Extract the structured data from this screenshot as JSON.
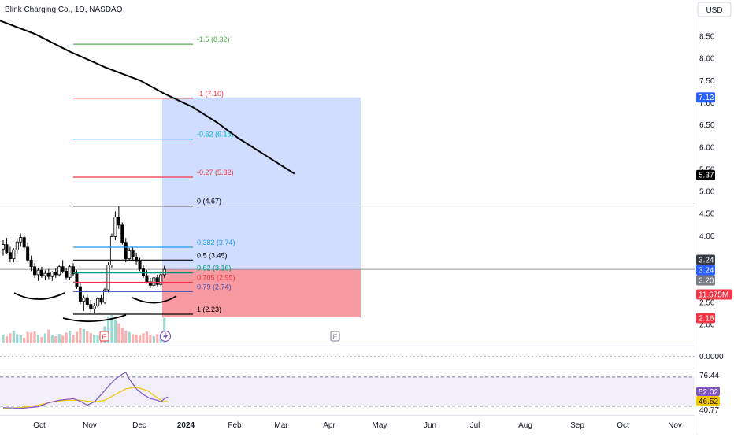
{
  "header": {
    "symbol_title": "Blink Charging Co., 1D, NASDAQ",
    "currency_button": "USD"
  },
  "chart_data": {
    "type": "candlestick",
    "title": "Blink Charging Co., 1D, NASDAQ",
    "price_axis": {
      "ticks": [
        "8.50",
        "8.00",
        "7.50",
        "7.00",
        "6.50",
        "6.00",
        "5.50",
        "5.00",
        "4.50",
        "4.00",
        "3.50",
        "3.00",
        "2.50",
        "2.00"
      ],
      "tick_values": [
        8.5,
        8.0,
        7.5,
        7.0,
        6.5,
        6.0,
        5.5,
        5.0,
        4.5,
        4.0,
        3.5,
        3.0,
        2.5,
        2.0
      ],
      "range": [
        1.6,
        9.1
      ]
    },
    "price_badges": [
      {
        "label": "7.12",
        "value": 7.12,
        "color": "#2962ff"
      },
      {
        "label": "5.37",
        "value": 5.37,
        "color": "#000000"
      },
      {
        "label": "3.24",
        "value": 3.24,
        "color": "#363a45"
      },
      {
        "label": "3.24",
        "value": 3.24,
        "color": "#2962ff"
      },
      {
        "label": "3.20",
        "value": 3.2,
        "color": "#787b86"
      },
      {
        "label": "11.675M",
        "value": 2.64,
        "color": "#f23645"
      },
      {
        "label": "2.16",
        "value": 2.16,
        "color": "#f23645"
      }
    ],
    "time_axis": {
      "labels": [
        "Oct",
        "Nov",
        "Dec",
        "2024",
        "Feb",
        "Mar",
        "Apr",
        "May",
        "Jun",
        "Jul",
        "Aug",
        "Sep",
        "Oct",
        "Nov"
      ],
      "bold": [
        "2024"
      ]
    },
    "fibonacci": [
      {
        "label": "-1.5 (8.32)",
        "value": 8.32,
        "color": "#4caf50"
      },
      {
        "label": "-1 (7.10)",
        "value": 7.1,
        "color": "#f23645"
      },
      {
        "label": "-0.62 (6.18)",
        "value": 6.18,
        "color": "#00bcd4"
      },
      {
        "label": "-0.27 (5.32)",
        "value": 5.32,
        "color": "#f23645"
      },
      {
        "label": "0 (4.67)",
        "value": 4.67,
        "color": "#000000"
      },
      {
        "label": "0.382 (3.74)",
        "value": 3.74,
        "color": "#2196f3"
      },
      {
        "label": "0.5 (3.45)",
        "value": 3.45,
        "color": "#000000"
      },
      {
        "label": "0.62 (3.16)",
        "value": 3.16,
        "color": "#009688"
      },
      {
        "label": "0.705 (2.95)",
        "value": 2.95,
        "color": "#f23645"
      },
      {
        "label": "0.79 (2.74)",
        "value": 2.74,
        "color": "#3f51b5"
      },
      {
        "label": "1 (2.23)",
        "value": 2.23,
        "color": "#000000"
      }
    ],
    "position": {
      "entry": 3.24,
      "target": 7.12,
      "stop": 2.16
    },
    "moving_average": [
      [
        0,
        8.85
      ],
      [
        10,
        8.55
      ],
      [
        20,
        8.15
      ],
      [
        30,
        7.8
      ],
      [
        40,
        7.5
      ],
      [
        47,
        7.2
      ],
      [
        55,
        6.9
      ],
      [
        62,
        6.55
      ],
      [
        68,
        6.2
      ],
      [
        75,
        5.85
      ],
      [
        80,
        5.6
      ],
      [
        84,
        5.4
      ]
    ],
    "candles": [
      {
        "o": 3.7,
        "h": 3.9,
        "l": 3.55,
        "c": 3.8
      },
      {
        "o": 3.8,
        "h": 3.95,
        "l": 3.6,
        "c": 3.62
      },
      {
        "o": 3.62,
        "h": 3.75,
        "l": 3.4,
        "c": 3.48
      },
      {
        "o": 3.48,
        "h": 3.72,
        "l": 3.4,
        "c": 3.68
      },
      {
        "o": 3.68,
        "h": 3.95,
        "l": 3.6,
        "c": 3.86
      },
      {
        "o": 3.86,
        "h": 4.05,
        "l": 3.75,
        "c": 3.96
      },
      {
        "o": 3.96,
        "h": 4.02,
        "l": 3.7,
        "c": 3.74
      },
      {
        "o": 3.74,
        "h": 3.85,
        "l": 3.4,
        "c": 3.45
      },
      {
        "o": 3.45,
        "h": 3.55,
        "l": 3.2,
        "c": 3.3
      },
      {
        "o": 3.3,
        "h": 3.38,
        "l": 3.05,
        "c": 3.12
      },
      {
        "o": 3.12,
        "h": 3.28,
        "l": 2.98,
        "c": 3.22
      },
      {
        "o": 3.22,
        "h": 3.3,
        "l": 3.05,
        "c": 3.1
      },
      {
        "o": 3.1,
        "h": 3.22,
        "l": 3.0,
        "c": 3.15
      },
      {
        "o": 3.15,
        "h": 3.25,
        "l": 3.02,
        "c": 3.08
      },
      {
        "o": 3.08,
        "h": 3.2,
        "l": 2.98,
        "c": 3.18
      },
      {
        "o": 3.18,
        "h": 3.26,
        "l": 3.05,
        "c": 3.12
      },
      {
        "o": 3.12,
        "h": 3.35,
        "l": 3.08,
        "c": 3.3
      },
      {
        "o": 3.3,
        "h": 3.45,
        "l": 3.15,
        "c": 3.2
      },
      {
        "o": 3.2,
        "h": 3.28,
        "l": 3.02,
        "c": 3.06
      },
      {
        "o": 3.06,
        "h": 3.35,
        "l": 3.0,
        "c": 3.3
      },
      {
        "o": 3.3,
        "h": 3.38,
        "l": 3.1,
        "c": 3.14
      },
      {
        "o": 3.14,
        "h": 3.22,
        "l": 2.8,
        "c": 2.85
      },
      {
        "o": 2.85,
        "h": 2.92,
        "l": 2.45,
        "c": 2.52
      },
      {
        "o": 2.52,
        "h": 2.65,
        "l": 2.3,
        "c": 2.6
      },
      {
        "o": 2.6,
        "h": 2.68,
        "l": 2.4,
        "c": 2.45
      },
      {
        "o": 2.45,
        "h": 2.55,
        "l": 2.28,
        "c": 2.35
      },
      {
        "o": 2.35,
        "h": 2.48,
        "l": 2.25,
        "c": 2.42
      },
      {
        "o": 2.42,
        "h": 2.62,
        "l": 2.38,
        "c": 2.58
      },
      {
        "o": 2.58,
        "h": 2.66,
        "l": 2.45,
        "c": 2.5
      },
      {
        "o": 2.5,
        "h": 2.82,
        "l": 2.46,
        "c": 2.78
      },
      {
        "o": 2.78,
        "h": 3.4,
        "l": 2.72,
        "c": 3.34
      },
      {
        "o": 3.34,
        "h": 4.05,
        "l": 3.28,
        "c": 3.98
      },
      {
        "o": 3.98,
        "h": 4.55,
        "l": 3.9,
        "c": 4.42
      },
      {
        "o": 4.42,
        "h": 4.67,
        "l": 4.15,
        "c": 4.24
      },
      {
        "o": 4.24,
        "h": 4.3,
        "l": 3.8,
        "c": 3.85
      },
      {
        "o": 3.85,
        "h": 3.95,
        "l": 3.4,
        "c": 3.48
      },
      {
        "o": 3.48,
        "h": 3.72,
        "l": 3.42,
        "c": 3.66
      },
      {
        "o": 3.66,
        "h": 3.74,
        "l": 3.45,
        "c": 3.52
      },
      {
        "o": 3.52,
        "h": 3.62,
        "l": 3.35,
        "c": 3.42
      },
      {
        "o": 3.42,
        "h": 3.5,
        "l": 3.2,
        "c": 3.25
      },
      {
        "o": 3.25,
        "h": 3.34,
        "l": 3.05,
        "c": 3.1
      },
      {
        "o": 3.1,
        "h": 3.22,
        "l": 2.92,
        "c": 2.96
      },
      {
        "o": 2.96,
        "h": 3.05,
        "l": 2.82,
        "c": 2.88
      },
      {
        "o": 2.88,
        "h": 3.1,
        "l": 2.84,
        "c": 3.05
      },
      {
        "o": 3.05,
        "h": 3.12,
        "l": 2.86,
        "c": 2.9
      },
      {
        "o": 2.9,
        "h": 3.2,
        "l": 2.86,
        "c": 3.12
      },
      {
        "o": 3.12,
        "h": 3.32,
        "l": 3.05,
        "c": 3.24
      }
    ],
    "volume_bars": [
      0.3,
      0.25,
      0.35,
      0.45,
      0.32,
      0.28,
      0.2,
      0.4,
      0.38,
      0.42,
      0.3,
      0.22,
      0.35,
      0.48,
      0.3,
      0.25,
      0.33,
      0.27,
      0.38,
      0.45,
      0.3,
      0.4,
      0.55,
      0.5,
      0.42,
      0.36,
      0.3,
      0.28,
      0.35,
      0.6,
      0.95,
      1.0,
      0.85,
      0.7,
      0.55,
      0.45,
      0.4,
      0.32,
      0.3,
      0.28,
      0.35,
      0.42,
      0.3,
      0.25,
      0.32,
      0.3,
      0.9
    ],
    "earnings_markers": [
      {
        "label": "E",
        "index": 30,
        "style": "past"
      },
      {
        "label": "E",
        "index": 104,
        "style": "future"
      }
    ],
    "indicator_1": {
      "label": "0.0000",
      "value": 0.0
    },
    "rsi": {
      "range": [
        30,
        85
      ],
      "upper_label": "76.44",
      "upper": 76.44,
      "lower_label": "40.77",
      "lower": 40.77,
      "rsi_label": "52.02",
      "rsi_value": 52.02,
      "rsi_color": "#7e57c2",
      "ma_label": "46.52",
      "ma_value": 46.52,
      "ma_color": "#f7c600",
      "rsi_line": [
        [
          0,
          39
        ],
        [
          5,
          38
        ],
        [
          10,
          40
        ],
        [
          13,
          45
        ],
        [
          16,
          48
        ],
        [
          20,
          50
        ],
        [
          22,
          47
        ],
        [
          24,
          42
        ],
        [
          26,
          46
        ],
        [
          28,
          55
        ],
        [
          30,
          65
        ],
        [
          32,
          74
        ],
        [
          34,
          80
        ],
        [
          35,
          82
        ],
        [
          36,
          74
        ],
        [
          38,
          62
        ],
        [
          40,
          55
        ],
        [
          42,
          50
        ],
        [
          44,
          48
        ],
        [
          45,
          46
        ],
        [
          46,
          50
        ],
        [
          47,
          52
        ]
      ],
      "ma_line": [
        [
          0,
          38
        ],
        [
          5,
          39
        ],
        [
          10,
          42
        ],
        [
          14,
          46
        ],
        [
          18,
          48
        ],
        [
          22,
          48
        ],
        [
          26,
          46
        ],
        [
          29,
          48
        ],
        [
          32,
          55
        ],
        [
          35,
          62
        ],
        [
          38,
          64
        ],
        [
          41,
          60
        ],
        [
          43,
          54
        ],
        [
          45,
          48
        ],
        [
          46,
          46.5
        ],
        [
          47,
          46.52
        ]
      ]
    }
  }
}
